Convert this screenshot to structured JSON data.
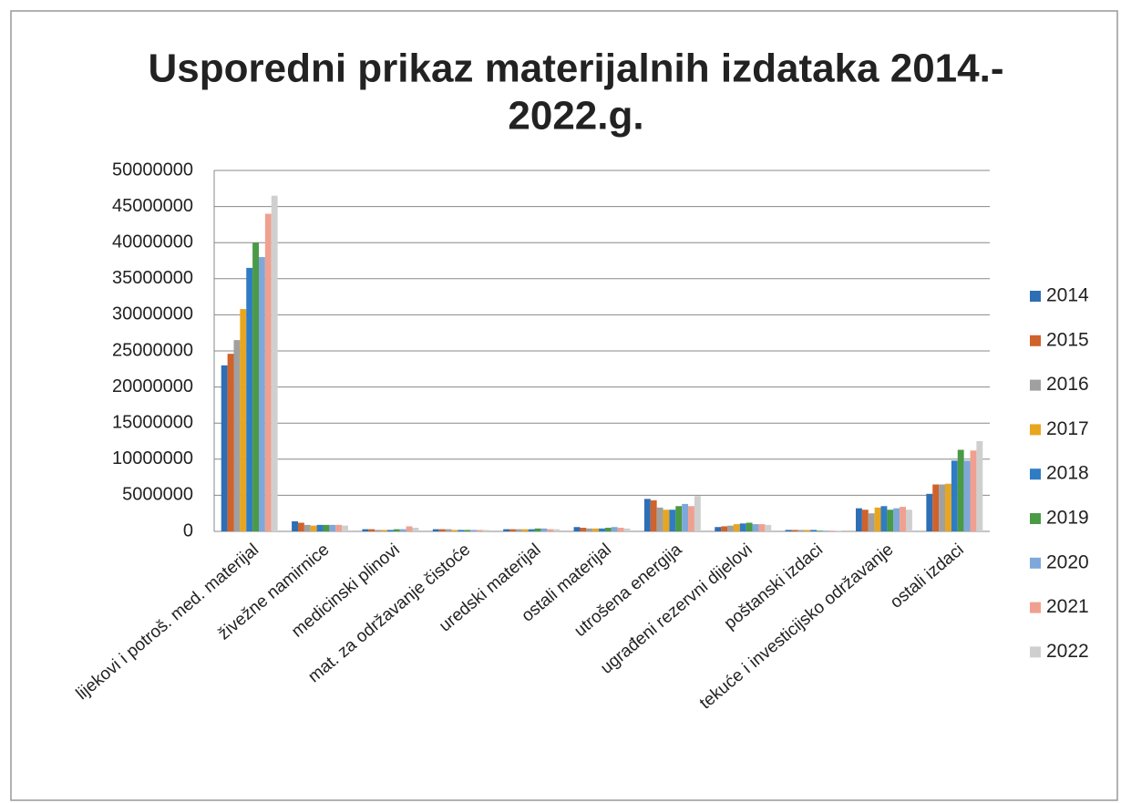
{
  "chart_data": {
    "type": "bar",
    "title": [
      "Usporedni prikaz materijalnih izdataka 2014.-",
      "2022.g."
    ],
    "categories": [
      "lijekovi i potroš. med. materijal",
      "živežne namirnice",
      "medicinski plinovi",
      "mat. za održavanje čistoće",
      "uredski materijal",
      "ostali materijal",
      "utrošena energija",
      "ugrađeni rezervni dijelovi",
      "poštanski izdaci",
      "tekuće i investicijsko održavanje",
      "ostali izdaci"
    ],
    "series": [
      {
        "name": "2014",
        "color": "#2e6eb5",
        "values": [
          23000000,
          1400000,
          300000,
          300000,
          300000,
          600000,
          4500000,
          600000,
          200000,
          3200000,
          5200000
        ]
      },
      {
        "name": "2015",
        "color": "#d0622b",
        "values": [
          24600000,
          1200000,
          300000,
          300000,
          300000,
          500000,
          4300000,
          700000,
          200000,
          3000000,
          6500000
        ]
      },
      {
        "name": "2016",
        "color": "#a0a0a0",
        "values": [
          26500000,
          900000,
          200000,
          300000,
          300000,
          400000,
          3300000,
          800000,
          200000,
          2500000,
          6500000
        ]
      },
      {
        "name": "2017",
        "color": "#e8a620",
        "values": [
          30800000,
          800000,
          200000,
          200000,
          300000,
          400000,
          3000000,
          1000000,
          200000,
          3300000,
          6600000
        ]
      },
      {
        "name": "2018",
        "color": "#2f7cc4",
        "values": [
          36500000,
          900000,
          200000,
          200000,
          300000,
          400000,
          3000000,
          1100000,
          200000,
          3500000,
          9800000
        ]
      },
      {
        "name": "2019",
        "color": "#4a9a46",
        "values": [
          40000000,
          900000,
          300000,
          200000,
          400000,
          500000,
          3500000,
          1200000,
          100000,
          3000000,
          11300000
        ]
      },
      {
        "name": "2020",
        "color": "#7ea8da",
        "values": [
          38000000,
          900000,
          300000,
          200000,
          400000,
          600000,
          3800000,
          1000000,
          100000,
          3200000,
          9800000
        ]
      },
      {
        "name": "2021",
        "color": "#f0a090",
        "values": [
          44000000,
          900000,
          700000,
          200000,
          300000,
          500000,
          3500000,
          1000000,
          100000,
          3400000,
          11200000
        ]
      },
      {
        "name": "2022",
        "color": "#cfcfcf",
        "values": [
          46500000,
          800000,
          500000,
          200000,
          300000,
          400000,
          4900000,
          900000,
          100000,
          3000000,
          12500000
        ]
      }
    ],
    "ylim": [
      0,
      50000000
    ],
    "yticks": [
      0,
      5000000,
      10000000,
      15000000,
      20000000,
      25000000,
      30000000,
      35000000,
      40000000,
      45000000,
      50000000
    ],
    "grid": true,
    "legend": "right"
  }
}
